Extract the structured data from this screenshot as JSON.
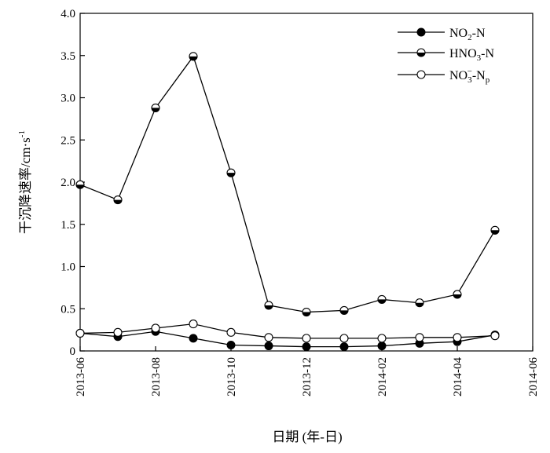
{
  "chart_data": {
    "type": "line",
    "xlabel": "日期 (年-日)",
    "ylabel": "干沉降速率/cm·s",
    "ylabel_sup": "-1",
    "xlim": [
      "2013-06",
      "2014-06"
    ],
    "ylim": [
      0,
      4.0
    ],
    "x_ticks": [
      "2013-06",
      "2013-08",
      "2013-10",
      "2013-12",
      "2014-02",
      "2014-04",
      "2014-06"
    ],
    "y_ticks": [
      "0",
      "0.5",
      "1.0",
      "1.5",
      "2.0",
      "2.5",
      "3.0",
      "3.5",
      "4.0"
    ],
    "y_tick_values": [
      0,
      0.5,
      1.0,
      1.5,
      2.0,
      2.5,
      3.0,
      3.5,
      4.0
    ],
    "x": [
      "2013-06",
      "2013-07",
      "2013-08",
      "2013-09",
      "2013-10",
      "2013-11",
      "2013-12",
      "2014-01",
      "2014-02",
      "2014-03",
      "2014-04",
      "2014-05"
    ],
    "grid": false,
    "legend_position": "top-right",
    "series": [
      {
        "name": "NO2-N",
        "legend_main": "NO",
        "legend_sub": "2",
        "legend_tail": "-N",
        "marker": "filled",
        "values": [
          0.21,
          0.17,
          0.23,
          0.15,
          0.07,
          0.06,
          0.05,
          0.05,
          0.06,
          0.09,
          0.11,
          0.19
        ]
      },
      {
        "name": "HNO3-N",
        "legend_main": "HNO",
        "legend_sub": "3",
        "legend_tail": "-N",
        "marker": "half",
        "values": [
          1.97,
          1.79,
          2.88,
          3.49,
          2.11,
          0.54,
          0.46,
          0.48,
          0.61,
          0.57,
          0.67,
          1.43
        ]
      },
      {
        "name": "NO3−-Np",
        "legend_main": "NO",
        "legend_sub": "3",
        "legend_sup": "−",
        "legend_tail": "-N",
        "legend_sub2": "p",
        "marker": "open",
        "values": [
          0.21,
          0.22,
          0.27,
          0.32,
          0.22,
          0.16,
          0.15,
          0.15,
          0.15,
          0.16,
          0.16,
          0.18
        ]
      }
    ]
  }
}
